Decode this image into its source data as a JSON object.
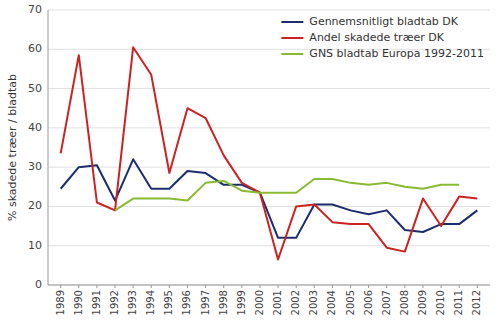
{
  "chart_data": {
    "type": "line",
    "y_label": "% skadede træer / bladtab",
    "x": [
      1989,
      1990,
      1991,
      1992,
      1993,
      1994,
      1995,
      1996,
      1997,
      1998,
      1999,
      2000,
      2001,
      2002,
      2003,
      2004,
      2005,
      2006,
      2007,
      2008,
      2009,
      2010,
      2011,
      2012
    ],
    "series": [
      {
        "name": "Gennemsnitligt bladtab DK",
        "color": "#1c2d6e",
        "values": [
          24.5,
          30.0,
          30.5,
          21.5,
          32.0,
          24.5,
          24.5,
          29.0,
          28.5,
          25.5,
          25.5,
          23.5,
          12.0,
          12.0,
          20.5,
          20.5,
          19.0,
          18.0,
          19.0,
          14.0,
          13.5,
          15.5,
          15.5,
          19.0
        ]
      },
      {
        "name": "Andel skadede træer DK",
        "color": "#cc2222",
        "values": [
          33.5,
          58.5,
          21.0,
          19.0,
          60.5,
          53.5,
          28.5,
          45.0,
          42.5,
          33.0,
          26.0,
          23.5,
          6.5,
          20.0,
          20.5,
          16.0,
          15.5,
          15.5,
          9.5,
          8.5,
          22.0,
          15.0,
          22.5,
          22.0
        ]
      },
      {
        "name": "GNS bladtab Europa 1992-2011",
        "color": "#88bb33",
        "values": [
          null,
          null,
          null,
          19.0,
          22.0,
          22.0,
          22.0,
          21.5,
          26.0,
          26.5,
          24.0,
          23.5,
          23.5,
          23.5,
          27.0,
          27.0,
          26.0,
          25.5,
          26.0,
          25.0,
          24.5,
          25.5,
          25.5,
          null
        ]
      }
    ],
    "xlim": [
      1988.3,
      2012.7
    ],
    "xticks": [
      1989,
      1990,
      1991,
      1992,
      1993,
      1994,
      1995,
      1996,
      1997,
      1998,
      1999,
      2000,
      2001,
      2002,
      2003,
      2004,
      2005,
      2006,
      2007,
      2008,
      2009,
      2010,
      2011,
      2012
    ],
    "ylim": [
      0,
      70
    ],
    "yticks": [
      0,
      10,
      20,
      30,
      40,
      50,
      60,
      70
    ],
    "grid": true,
    "legend": "top-right"
  }
}
